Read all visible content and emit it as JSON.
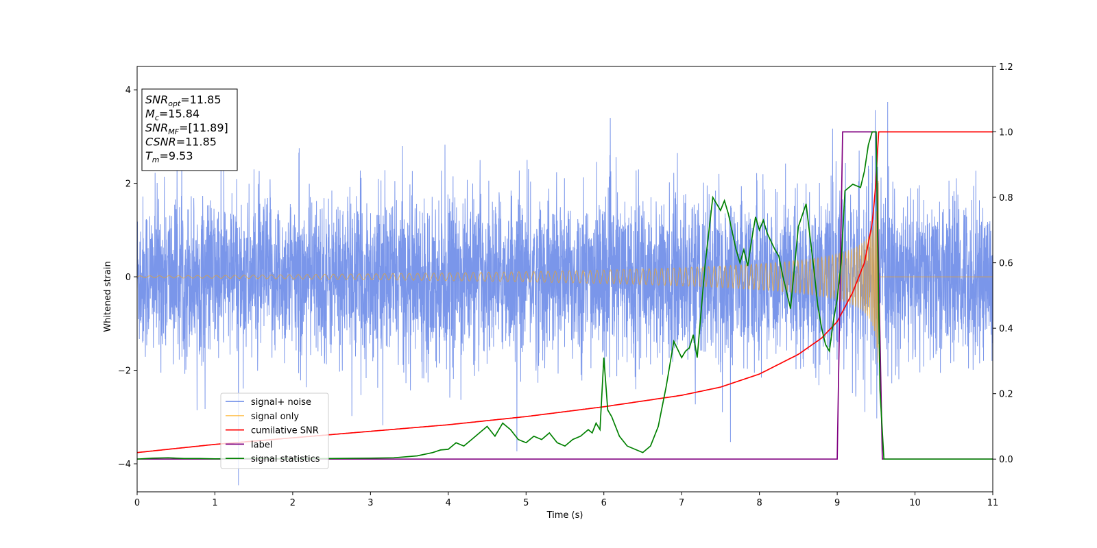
{
  "chart_data": {
    "type": "line",
    "xlabel": "Time (s)",
    "ylabel": "Whitened strain",
    "xlim": [
      0,
      11
    ],
    "ylim_left": [
      -4.6,
      4.5
    ],
    "ylim_right": [
      -0.1,
      1.2
    ],
    "x_ticks": [
      "0",
      "1",
      "2",
      "3",
      "4",
      "5",
      "6",
      "7",
      "8",
      "9",
      "10",
      "11"
    ],
    "y_left_ticks": [
      "−4",
      "−2",
      "0",
      "2",
      "4"
    ],
    "y_right_ticks": [
      "0.0",
      "0.2",
      "0.4",
      "0.6",
      "0.8",
      "1.0",
      "1.2"
    ],
    "annotation": [
      {
        "sym": "SNR",
        "sub": "opt",
        "val": "=11.85"
      },
      {
        "sym": "M",
        "sub": "c",
        "val": "=15.84"
      },
      {
        "sym": "SNR",
        "sub": "MF",
        "val": "=[11.89]"
      },
      {
        "sym": "CSNR",
        "sub": "",
        "val": "=11.85"
      },
      {
        "sym": "T",
        "sub": "m",
        "val": "=9.53"
      }
    ],
    "series": [
      {
        "name": "signal+ noise",
        "axis": "left",
        "color": "#4169e1",
        "noise_std": 0.85,
        "merger_time": 9.53
      },
      {
        "name": "signal only",
        "axis": "left",
        "color": "#ffa500",
        "amp_start": 0.02,
        "amp_peak": 2.2,
        "merger_time": 9.53
      },
      {
        "name": "cumilative SNR",
        "axis": "right",
        "color": "#ff0000",
        "x": [
          0,
          1,
          2,
          3,
          4,
          5,
          6,
          7,
          7.5,
          8,
          8.5,
          8.8,
          9.0,
          9.2,
          9.35,
          9.45,
          9.5,
          9.53,
          11
        ],
        "y": [
          0.02,
          0.045,
          0.065,
          0.085,
          0.105,
          0.13,
          0.16,
          0.195,
          0.22,
          0.26,
          0.32,
          0.37,
          0.42,
          0.51,
          0.6,
          0.72,
          0.85,
          1.0,
          1.0
        ]
      },
      {
        "name": "label",
        "axis": "right",
        "color": "#800080",
        "x": [
          0,
          9.0,
          9.07,
          9.5,
          9.58,
          11
        ],
        "y": [
          0,
          0,
          1,
          1,
          0,
          0
        ]
      },
      {
        "name": "signal statistics",
        "axis": "right",
        "color": "#008000",
        "x": [
          0,
          0.2,
          0.4,
          0.6,
          0.8,
          1.0,
          1.5,
          2.0,
          2.5,
          3.0,
          3.3,
          3.6,
          3.8,
          3.9,
          4.0,
          4.1,
          4.2,
          4.3,
          4.4,
          4.5,
          4.6,
          4.7,
          4.8,
          4.9,
          5.0,
          5.1,
          5.2,
          5.3,
          5.4,
          5.5,
          5.6,
          5.7,
          5.8,
          5.85,
          5.9,
          5.95,
          6.0,
          6.05,
          6.1,
          6.2,
          6.3,
          6.4,
          6.5,
          6.6,
          6.7,
          6.8,
          6.9,
          7.0,
          7.05,
          7.1,
          7.15,
          7.2,
          7.3,
          7.4,
          7.5,
          7.55,
          7.6,
          7.7,
          7.75,
          7.8,
          7.85,
          7.9,
          7.95,
          8.0,
          8.05,
          8.1,
          8.2,
          8.25,
          8.3,
          8.4,
          8.5,
          8.6,
          8.7,
          8.75,
          8.8,
          8.85,
          8.9,
          8.95,
          9.0,
          9.05,
          9.1,
          9.2,
          9.3,
          9.35,
          9.4,
          9.45,
          9.5,
          9.55,
          9.6,
          9.7,
          11
        ],
        "y": [
          0.0,
          0.003,
          0.004,
          0.002,
          0.002,
          0.001,
          0.002,
          0.001,
          0.002,
          0.003,
          0.004,
          0.01,
          0.02,
          0.028,
          0.03,
          0.05,
          0.04,
          0.06,
          0.08,
          0.1,
          0.07,
          0.11,
          0.09,
          0.06,
          0.05,
          0.07,
          0.06,
          0.08,
          0.05,
          0.04,
          0.06,
          0.07,
          0.09,
          0.08,
          0.11,
          0.09,
          0.31,
          0.15,
          0.13,
          0.07,
          0.04,
          0.03,
          0.02,
          0.04,
          0.1,
          0.22,
          0.36,
          0.31,
          0.33,
          0.34,
          0.38,
          0.31,
          0.59,
          0.8,
          0.76,
          0.79,
          0.75,
          0.64,
          0.6,
          0.64,
          0.59,
          0.67,
          0.74,
          0.7,
          0.73,
          0.69,
          0.64,
          0.62,
          0.56,
          0.46,
          0.71,
          0.78,
          0.58,
          0.47,
          0.4,
          0.35,
          0.33,
          0.42,
          0.49,
          0.6,
          0.82,
          0.84,
          0.83,
          0.88,
          0.96,
          1.0,
          1.0,
          0.21,
          0.0,
          0.0,
          0.0
        ]
      }
    ],
    "legend_position": "lower-left",
    "grid": false
  }
}
